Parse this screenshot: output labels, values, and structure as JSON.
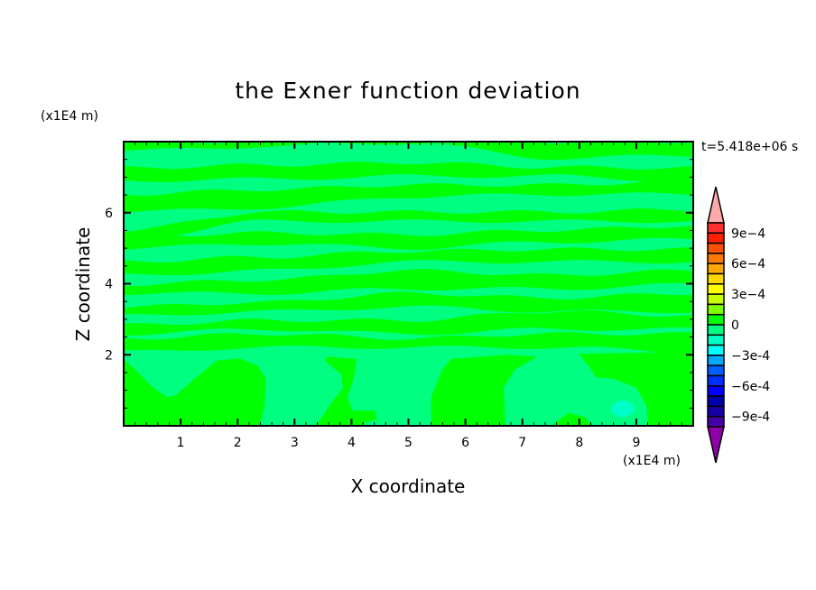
{
  "chart_data": {
    "type": "heatmap",
    "subtype": "filled-contour",
    "title": "the Exner function deviation",
    "xlabel": "X coordinate",
    "ylabel": "Z coordinate",
    "x_unit": "(x1E4 m)",
    "y_unit": "(x1E4 m)",
    "annotation": "t=5.418e+06 s",
    "xlim": [
      0,
      10
    ],
    "ylim": [
      0,
      8
    ],
    "x_ticks": [
      "1",
      "2",
      "3",
      "4",
      "5",
      "6",
      "7",
      "8",
      "9"
    ],
    "x_tick_values": [
      1,
      2,
      3,
      4,
      5,
      6,
      7,
      8,
      9
    ],
    "y_ticks": [
      "2",
      "4",
      "6"
    ],
    "y_tick_values": [
      2,
      4,
      6
    ],
    "colorbar": {
      "levels_min": -0.001,
      "levels_max": 0.001,
      "step": 0.0001,
      "colors_top_to_bottom": [
        "#ff3030",
        "#ff2000",
        "#ff5000",
        "#ff7800",
        "#ffa800",
        "#ffd800",
        "#ffff00",
        "#c8ff00",
        "#80ff00",
        "#00ff00",
        "#00ff80",
        "#00ffc8",
        "#00ffff",
        "#00a8ff",
        "#0060ff",
        "#0030ff",
        "#0000ff",
        "#0000a8",
        "#1800a8",
        "#4800a8"
      ],
      "over_color": "#ffaaaa",
      "under_color": "#9000a8",
      "labels": [
        "9e-4",
        "6e-4",
        "3e-4",
        "0",
        "-3e-4",
        "-6e-4",
        "-9e-4"
      ],
      "label_values": [
        0.0009,
        0.0006,
        0.0003,
        0,
        -0.0003,
        -0.0006,
        -0.0009
      ]
    },
    "background_level": "-1e-4 to 0",
    "background_color": "#00ff80",
    "regions": {
      "positive_band_color": "#00ff00",
      "band_x": [
        0,
        2.5,
        5,
        7.5,
        10
      ],
      "bands_0_to_1e-4": [
        [
          [
            7.74,
            8
          ],
          [
            7.87,
            8
          ],
          [
            7.97,
            8
          ],
          [
            7.54,
            8
          ],
          [
            7.61,
            8
          ]
        ],
        [
          [
            6.9,
            7.26
          ],
          [
            6.95,
            7.34
          ],
          [
            7.03,
            7.41
          ],
          [
            7.03,
            7.28
          ],
          [
            6.9,
            7.26
          ]
        ],
        [
          [
            6.02,
            6.52
          ],
          [
            6.14,
            6.65
          ],
          [
            6.45,
            6.78
          ],
          [
            6.52,
            6.78
          ],
          [
            6.52,
            6.9
          ]
        ],
        [
          [
            5.25,
            5.51
          ],
          [
            5.76,
            6.02
          ],
          [
            5.76,
            6.02
          ],
          [
            5.76,
            6.02
          ],
          [
            5.76,
            6.09
          ]
        ],
        [
          [
            5.0,
            5.33
          ],
          [
            5.13,
            5.43
          ],
          [
            5.0,
            5.38
          ],
          [
            5.18,
            5.51
          ],
          [
            5.25,
            5.63
          ]
        ],
        [
          [
            4.24,
            4.62
          ],
          [
            4.37,
            4.75
          ],
          [
            4.62,
            4.92
          ],
          [
            4.62,
            4.97
          ],
          [
            4.62,
            4.97
          ]
        ],
        [
          [
            3.73,
            3.98
          ],
          [
            3.73,
            4.11
          ],
          [
            3.86,
            4.37
          ],
          [
            3.86,
            4.24
          ],
          [
            3.98,
            4.37
          ]
        ],
        [
          [
            3.1,
            3.35
          ],
          [
            3.22,
            3.48
          ],
          [
            3.35,
            3.73
          ],
          [
            3.22,
            3.6
          ],
          [
            3.22,
            3.73
          ]
        ],
        [
          [
            2.59,
            2.84
          ],
          [
            2.72,
            2.97
          ],
          [
            2.59,
            2.97
          ],
          [
            2.72,
            3.22
          ],
          [
            2.72,
            3.1
          ]
        ],
        [
          [
            2.08,
            2.46
          ],
          [
            2.21,
            2.59
          ],
          [
            2.21,
            2.46
          ],
          [
            2.21,
            2.59
          ],
          [
            2.08,
            2.59
          ]
        ]
      ],
      "blobs_0_to_1e-4": [
        [
          [
            0,
            1.88
          ],
          [
            0.21,
            1.57
          ],
          [
            0.52,
            1.07
          ],
          [
            0.76,
            0.81
          ],
          [
            0.92,
            0.86
          ],
          [
            1.24,
            1.32
          ],
          [
            1.63,
            1.83
          ],
          [
            2.03,
            1.9
          ],
          [
            2.35,
            1.7
          ],
          [
            2.5,
            1.32
          ],
          [
            2.47,
            0.56
          ],
          [
            2.39,
            0
          ],
          [
            0,
            0
          ]
        ],
        [
          [
            3.38,
            0
          ],
          [
            3.61,
            0.56
          ],
          [
            3.85,
            1.07
          ],
          [
            3.82,
            1.45
          ],
          [
            3.53,
            1.83
          ],
          [
            3.57,
            1.95
          ],
          [
            4.09,
            1.88
          ],
          [
            4.04,
            1.32
          ],
          [
            3.93,
            0.81
          ],
          [
            4.01,
            0.43
          ],
          [
            4.41,
            0.43
          ],
          [
            4.45,
            0.18
          ],
          [
            4.25,
            0.1
          ],
          [
            4.17,
            0
          ]
        ],
        [
          [
            5.4,
            0
          ],
          [
            5.4,
            0.81
          ],
          [
            5.59,
            1.57
          ],
          [
            5.75,
            1.88
          ],
          [
            6.7,
            2.0
          ],
          [
            7.26,
            1.95
          ],
          [
            6.86,
            1.57
          ],
          [
            6.67,
            1.07
          ],
          [
            6.7,
            0
          ]
        ],
        [
          [
            8.0,
            2.03
          ],
          [
            10,
            2.08
          ],
          [
            10,
            0
          ],
          [
            9.21,
            0
          ],
          [
            9.18,
            0.56
          ],
          [
            9.0,
            1.07
          ],
          [
            8.61,
            1.32
          ],
          [
            8.29,
            1.37
          ],
          [
            8.16,
            1.7
          ],
          [
            8.05,
            1.9
          ]
        ],
        [
          [
            7.5,
            0
          ],
          [
            7.81,
            0.36
          ],
          [
            8.1,
            0.25
          ],
          [
            8.21,
            0
          ]
        ]
      ],
      "spot_-2e-4_to_-1e-4": {
        "center": [
          8.76,
          0.48
        ],
        "radius_x": 0.2,
        "radius_z": 0.23,
        "color": "#00ffc8"
      }
    }
  }
}
